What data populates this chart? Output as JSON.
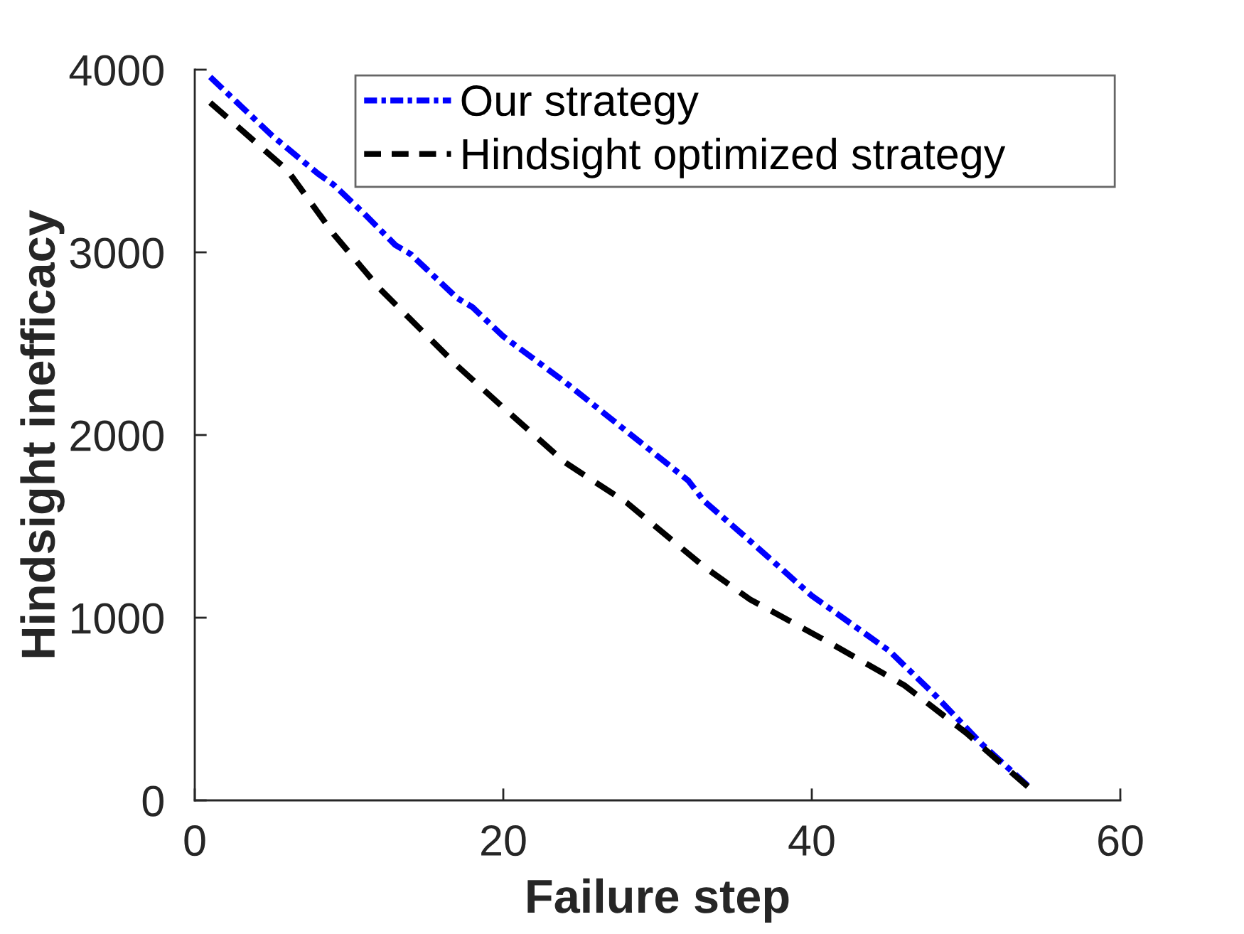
{
  "chart_data": {
    "type": "line",
    "xlabel": "Failure step",
    "ylabel": "Hindsight inefficacy",
    "xlim": [
      0,
      60
    ],
    "xticks": [
      0,
      20,
      40,
      60
    ],
    "ylim": [
      0,
      4000
    ],
    "yticks": [
      0,
      1000,
      2000,
      3000,
      4000
    ],
    "grid": false,
    "legend": "top right",
    "marker": "none",
    "series": [
      {
        "name": "Our strategy",
        "color": "#0000ff",
        "line_style": "dashdot",
        "x": [
          1,
          3,
          5,
          8,
          9,
          11,
          13,
          14,
          15,
          17,
          18,
          20,
          24,
          28,
          32,
          33,
          36,
          40,
          45,
          48,
          51,
          54
        ],
        "values": [
          3960,
          3800,
          3640,
          3430,
          3370,
          3210,
          3040,
          2990,
          2910,
          2750,
          2700,
          2540,
          2290,
          2020,
          1750,
          1640,
          1420,
          1120,
          820,
          575,
          310,
          80
        ]
      },
      {
        "name": "Hindsight optimized strategy",
        "color": "#000000",
        "line_style": "dashed",
        "x": [
          1,
          6,
          9,
          12,
          17,
          20,
          22,
          24,
          28,
          31,
          33,
          36,
          41,
          46,
          50,
          54
        ],
        "values": [
          3820,
          3450,
          3100,
          2800,
          2380,
          2150,
          2000,
          1850,
          1630,
          1420,
          1280,
          1100,
          870,
          630,
          370,
          75
        ]
      }
    ]
  }
}
